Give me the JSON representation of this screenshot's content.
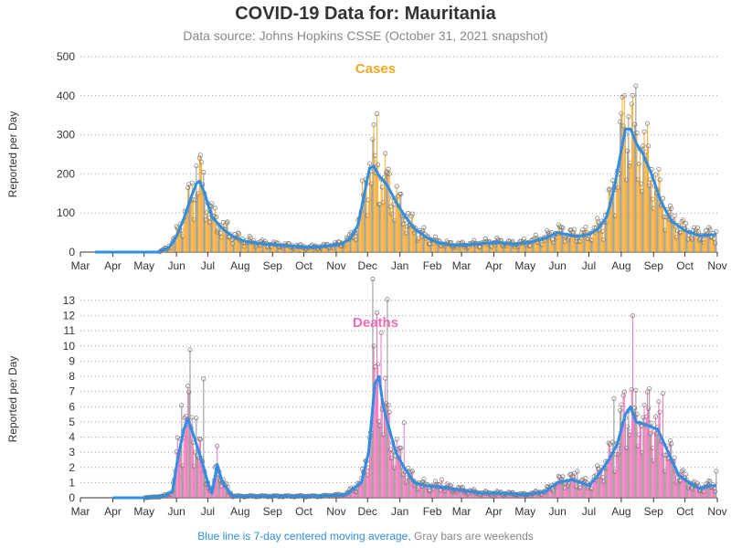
{
  "header": {
    "title": "COVID-19 Data for: Mauritania",
    "subtitle": "Data source: Johns Hopkins CSSE (October 31, 2021 snapshot)"
  },
  "footer": {
    "blue_text": "Blue line is 7-day centered moving average,",
    "gray_text": "Gray bars are weekends"
  },
  "colors": {
    "cases_bar": "#f5a623",
    "deaths_bar": "#f06cb5",
    "average_line": "#2f8de4",
    "weekend_bar": "#888888"
  },
  "chart_data": [
    {
      "type": "bar",
      "title": "Cases",
      "ylabel": "Reported per Day",
      "ylim": [
        0,
        500
      ],
      "yticks": [
        0,
        100,
        200,
        300,
        400,
        500
      ],
      "month_labels": [
        "Mar",
        "Apr",
        "May",
        "Jun",
        "Jul",
        "Aug",
        "Sep",
        "Oct",
        "Nov",
        "Dec",
        "Jan",
        "Feb",
        "Mar",
        "Apr",
        "May",
        "Jun",
        "Jul",
        "Aug",
        "Sep",
        "Oct",
        "Nov"
      ],
      "x_range": [
        "2020-03-01",
        "2021-11-01"
      ],
      "grid": "horizontal dotted",
      "series": [
        {
          "name": "7-day centered moving average",
          "x": [
            "2020-03-15",
            "2020-04-15",
            "2020-05-15",
            "2020-05-25",
            "2020-06-01",
            "2020-06-08",
            "2020-06-15",
            "2020-06-20",
            "2020-06-23",
            "2020-06-28",
            "2020-07-05",
            "2020-07-15",
            "2020-07-25",
            "2020-08-05",
            "2020-08-20",
            "2020-09-05",
            "2020-09-20",
            "2020-10-05",
            "2020-10-20",
            "2020-11-05",
            "2020-11-15",
            "2020-11-22",
            "2020-11-28",
            "2020-12-03",
            "2020-12-07",
            "2020-12-12",
            "2020-12-20",
            "2020-12-28",
            "2021-01-05",
            "2021-01-15",
            "2021-01-25",
            "2021-02-05",
            "2021-02-20",
            "2021-03-05",
            "2021-03-20",
            "2021-04-05",
            "2021-04-20",
            "2021-05-05",
            "2021-05-20",
            "2021-06-01",
            "2021-06-10",
            "2021-06-20",
            "2021-07-01",
            "2021-07-10",
            "2021-07-18",
            "2021-07-25",
            "2021-08-01",
            "2021-08-05",
            "2021-08-10",
            "2021-08-15",
            "2021-08-22",
            "2021-08-30",
            "2021-09-08",
            "2021-09-18",
            "2021-10-01",
            "2021-10-15",
            "2021-10-31"
          ],
          "values": [
            0,
            0,
            0,
            12,
            40,
            85,
            140,
            175,
            182,
            150,
            90,
            60,
            40,
            28,
            22,
            18,
            15,
            12,
            14,
            20,
            35,
            70,
            150,
            215,
            220,
            195,
            170,
            130,
            95,
            60,
            40,
            25,
            18,
            18,
            22,
            25,
            20,
            25,
            35,
            50,
            45,
            40,
            45,
            60,
            90,
            160,
            260,
            315,
            315,
            280,
            250,
            200,
            130,
            80,
            55,
            42,
            45
          ]
        },
        {
          "name": "Reported per day",
          "x": [
            "2020-05-25",
            "2020-06-01",
            "2020-06-08",
            "2020-06-15",
            "2020-06-20",
            "2020-06-25",
            "2020-07-05",
            "2020-07-20",
            "2020-08-10",
            "2020-09-10",
            "2020-10-10",
            "2020-11-10",
            "2020-11-25",
            "2020-12-01",
            "2020-12-06",
            "2020-12-10",
            "2020-12-20",
            "2020-12-28",
            "2021-01-10",
            "2021-02-10",
            "2021-03-10",
            "2021-04-10",
            "2021-05-10",
            "2021-06-05",
            "2021-06-25",
            "2021-07-15",
            "2021-07-25",
            "2021-08-02",
            "2021-08-08",
            "2021-08-15",
            "2021-08-22",
            "2021-09-01",
            "2021-09-15",
            "2021-10-05",
            "2021-10-31"
          ],
          "values": [
            15,
            45,
            90,
            130,
            210,
            220,
            90,
            60,
            30,
            18,
            12,
            22,
            80,
            170,
            240,
            290,
            200,
            150,
            60,
            25,
            18,
            25,
            30,
            55,
            45,
            60,
            200,
            390,
            350,
            300,
            250,
            210,
            120,
            55,
            60
          ]
        }
      ]
    },
    {
      "type": "bar",
      "title": "Deaths",
      "ylabel": "Reported per Day",
      "ylim": [
        0,
        13
      ],
      "yticks": [
        0,
        1,
        2,
        3,
        4,
        5,
        6,
        7,
        8,
        9,
        10,
        11,
        12,
        13
      ],
      "month_labels": [
        "Mar",
        "Apr",
        "May",
        "Jun",
        "Jul",
        "Aug",
        "Sep",
        "Oct",
        "Nov",
        "Dec",
        "Jan",
        "Feb",
        "Mar",
        "Apr",
        "May",
        "Jun",
        "Jul",
        "Aug",
        "Sep",
        "Oct",
        "Nov"
      ],
      "x_range": [
        "2020-03-01",
        "2021-11-01"
      ],
      "grid": "horizontal dotted",
      "series": [
        {
          "name": "7-day centered moving average",
          "x": [
            "2020-04-01",
            "2020-05-01",
            "2020-05-20",
            "2020-05-28",
            "2020-06-02",
            "2020-06-08",
            "2020-06-12",
            "2020-06-18",
            "2020-06-25",
            "2020-07-01",
            "2020-07-05",
            "2020-07-10",
            "2020-07-15",
            "2020-07-25",
            "2020-08-15",
            "2020-09-15",
            "2020-10-15",
            "2020-11-10",
            "2020-11-25",
            "2020-12-02",
            "2020-12-08",
            "2020-12-12",
            "2020-12-16",
            "2020-12-22",
            "2020-12-28",
            "2021-01-05",
            "2021-01-15",
            "2021-01-25",
            "2021-02-10",
            "2021-03-01",
            "2021-03-20",
            "2021-04-10",
            "2021-05-01",
            "2021-05-20",
            "2021-06-01",
            "2021-06-15",
            "2021-07-01",
            "2021-07-10",
            "2021-07-20",
            "2021-07-28",
            "2021-08-05",
            "2021-08-10",
            "2021-08-15",
            "2021-08-25",
            "2021-09-05",
            "2021-09-15",
            "2021-09-25",
            "2021-10-05",
            "2021-10-15",
            "2021-10-25",
            "2021-10-31"
          ],
          "values": [
            0,
            0,
            0.1,
            0.4,
            2.5,
            4.5,
            5.2,
            4.0,
            2.5,
            1.0,
            0.3,
            2.2,
            1.0,
            0.1,
            0.1,
            0.1,
            0.1,
            0.2,
            1.0,
            3.0,
            7.5,
            8.0,
            6.0,
            4.5,
            3.0,
            2.0,
            1.0,
            0.8,
            0.7,
            0.5,
            0.3,
            0.3,
            0.2,
            0.4,
            1.0,
            1.2,
            0.8,
            1.5,
            2.5,
            3.5,
            5.5,
            6.0,
            5.0,
            4.8,
            4.5,
            3.0,
            1.5,
            1.0,
            0.6,
            0.8,
            0.8
          ]
        },
        {
          "name": "Reported per day",
          "x": [
            "2020-06-02",
            "2020-06-06",
            "2020-06-10",
            "2020-06-14",
            "2020-06-20",
            "2020-06-27",
            "2020-07-10",
            "2020-12-06",
            "2020-12-10",
            "2020-12-14",
            "2020-12-20",
            "2021-01-05",
            "2021-02-10",
            "2021-06-20",
            "2021-07-25",
            "2021-08-03",
            "2021-08-12",
            "2021-08-20",
            "2021-08-28",
            "2021-09-10",
            "2021-10-31"
          ],
          "values": [
            3,
            8,
            6,
            10,
            5,
            6,
            5,
            12,
            10,
            11,
            13,
            5,
            2,
            2,
            8,
            6,
            9,
            7,
            9,
            6,
            2
          ]
        }
      ]
    }
  ]
}
